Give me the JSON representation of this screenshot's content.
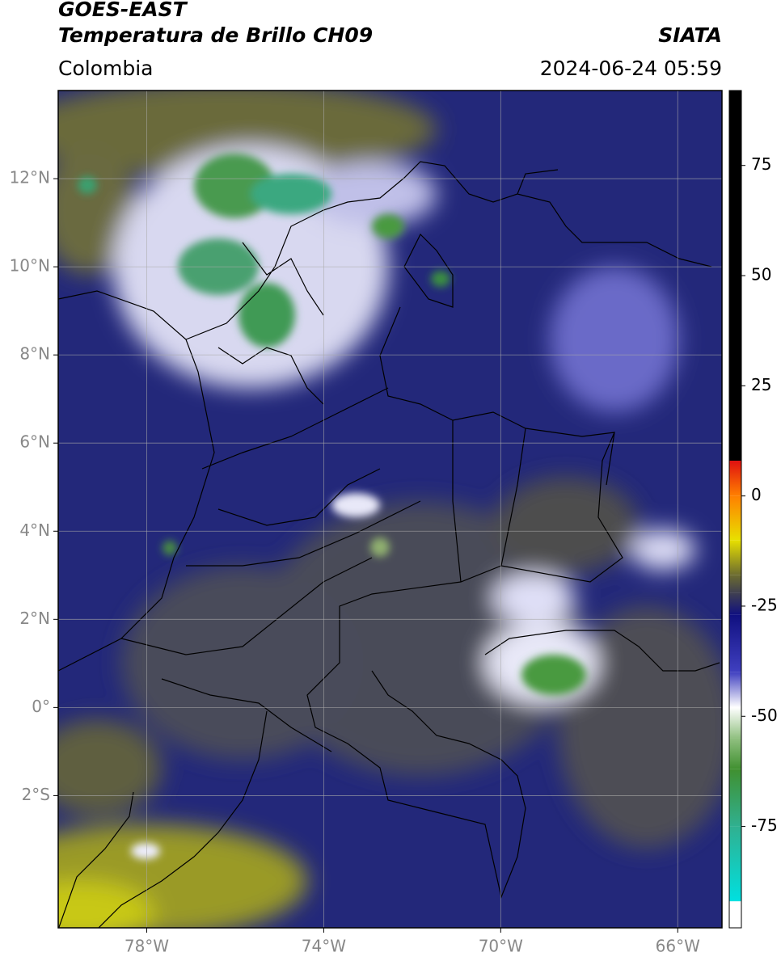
{
  "header": {
    "satellite": "GOES-EAST",
    "product": "Temperatura de Brillo CH09",
    "agency": "SIATA",
    "region": "Colombia",
    "datetime": "2024-06-24 05:59"
  },
  "map": {
    "lonlim": [
      -80,
      -65
    ],
    "latlim": [
      -5,
      14
    ],
    "xticks": [
      {
        "value": -78,
        "label": "78°W"
      },
      {
        "value": -74,
        "label": "74°W"
      },
      {
        "value": -70,
        "label": "70°W"
      },
      {
        "value": -66,
        "label": "66°W"
      }
    ],
    "yticks": [
      {
        "value": 12,
        "label": "12°N"
      },
      {
        "value": 10,
        "label": "10°N"
      },
      {
        "value": 8,
        "label": "8°N"
      },
      {
        "value": 6,
        "label": "6°N"
      },
      {
        "value": 4,
        "label": "4°N"
      },
      {
        "value": 2,
        "label": "2°N"
      },
      {
        "value": 0,
        "label": "0°"
      },
      {
        "value": -2,
        "label": "2°S"
      }
    ],
    "grid": true
  },
  "colorbar": {
    "lim": [
      -98,
      92
    ],
    "ticks": [
      75,
      50,
      25,
      0,
      -25,
      -50,
      -75
    ],
    "colormap": [
      {
        "value": 92,
        "color": "#000000"
      },
      {
        "value": 8,
        "color": "#000000"
      },
      {
        "value": 8,
        "color": "#e01010"
      },
      {
        "value": 0,
        "color": "#ff8000"
      },
      {
        "value": -10,
        "color": "#e8e000"
      },
      {
        "value": -18,
        "color": "#6b6b30"
      },
      {
        "value": -22,
        "color": "#404050"
      },
      {
        "value": -27,
        "color": "#101080"
      },
      {
        "value": -40,
        "color": "#4040c0"
      },
      {
        "value": -48,
        "color": "#ffffff"
      },
      {
        "value": -55,
        "color": "#90c080"
      },
      {
        "value": -62,
        "color": "#409030"
      },
      {
        "value": -75,
        "color": "#30b090"
      },
      {
        "value": -92,
        "color": "#00e0e0"
      },
      {
        "value": -92,
        "color": "#ffffff"
      },
      {
        "value": -98,
        "color": "#ffffff"
      }
    ]
  }
}
